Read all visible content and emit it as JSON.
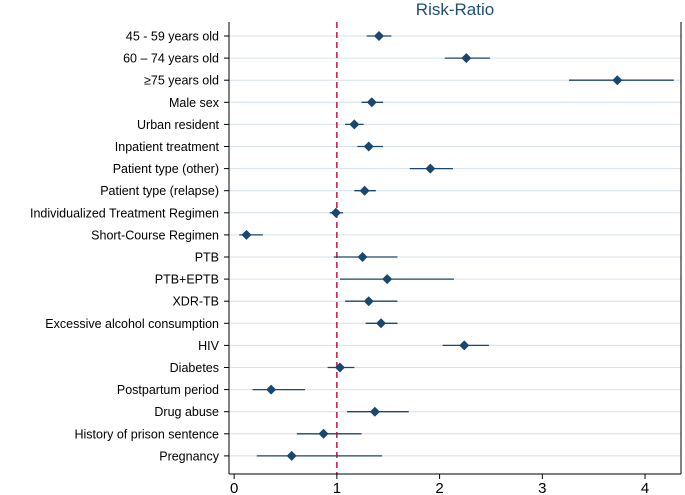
{
  "chart_data": {
    "type": "scatter",
    "subtype": "forest-plot",
    "title": "Risk-Ratio",
    "xlabel": "",
    "ylabel": "",
    "xlim": [
      -0.05,
      4.35
    ],
    "xticks": [
      0,
      1,
      2,
      3,
      4
    ],
    "reference_line": 1,
    "grid": true,
    "colors": {
      "marker": "#1a476f",
      "reference": "#c10534",
      "grid": "#d4e2ea",
      "title": "#1f4e79"
    },
    "rows": [
      {
        "label": "45 - 59 years old",
        "rr": 1.41,
        "lo": 1.29,
        "hi": 1.53
      },
      {
        "label": "60 – 74 years old",
        "rr": 2.26,
        "lo": 2.05,
        "hi": 2.49
      },
      {
        "label": "≥75 years old",
        "rr": 3.73,
        "lo": 3.26,
        "hi": 4.28
      },
      {
        "label": "Male sex",
        "rr": 1.34,
        "lo": 1.24,
        "hi": 1.45
      },
      {
        "label": "Urban resident",
        "rr": 1.17,
        "lo": 1.08,
        "hi": 1.26
      },
      {
        "label": "Inpatient treatment",
        "rr": 1.31,
        "lo": 1.2,
        "hi": 1.45
      },
      {
        "label": "Patient type (other)",
        "rr": 1.91,
        "lo": 1.71,
        "hi": 2.13
      },
      {
        "label": "Patient type (relapse)",
        "rr": 1.27,
        "lo": 1.17,
        "hi": 1.38
      },
      {
        "label": "Individualized Treatment Regimen",
        "rr": 0.99,
        "lo": 0.93,
        "hi": 1.06
      },
      {
        "label": "Short-Course Regimen",
        "rr": 0.12,
        "lo": 0.05,
        "hi": 0.28
      },
      {
        "label": "PTB",
        "rr": 1.25,
        "lo": 0.97,
        "hi": 1.59
      },
      {
        "label": "PTB+EPTB",
        "rr": 1.49,
        "lo": 1.03,
        "hi": 2.14
      },
      {
        "label": "XDR-TB",
        "rr": 1.31,
        "lo": 1.08,
        "hi": 1.59
      },
      {
        "label": "Excessive alcohol consumption",
        "rr": 1.43,
        "lo": 1.28,
        "hi": 1.59
      },
      {
        "label": "HIV",
        "rr": 2.24,
        "lo": 2.03,
        "hi": 2.48
      },
      {
        "label": "Diabetes",
        "rr": 1.03,
        "lo": 0.91,
        "hi": 1.17
      },
      {
        "label": "Postpartum period",
        "rr": 0.36,
        "lo": 0.18,
        "hi": 0.69
      },
      {
        "label": "Drug abuse",
        "rr": 1.37,
        "lo": 1.1,
        "hi": 1.7
      },
      {
        "label": "History of prison sentence",
        "rr": 0.87,
        "lo": 0.61,
        "hi": 1.24
      },
      {
        "label": "Pregnancy",
        "rr": 0.56,
        "lo": 0.22,
        "hi": 1.44
      }
    ]
  }
}
